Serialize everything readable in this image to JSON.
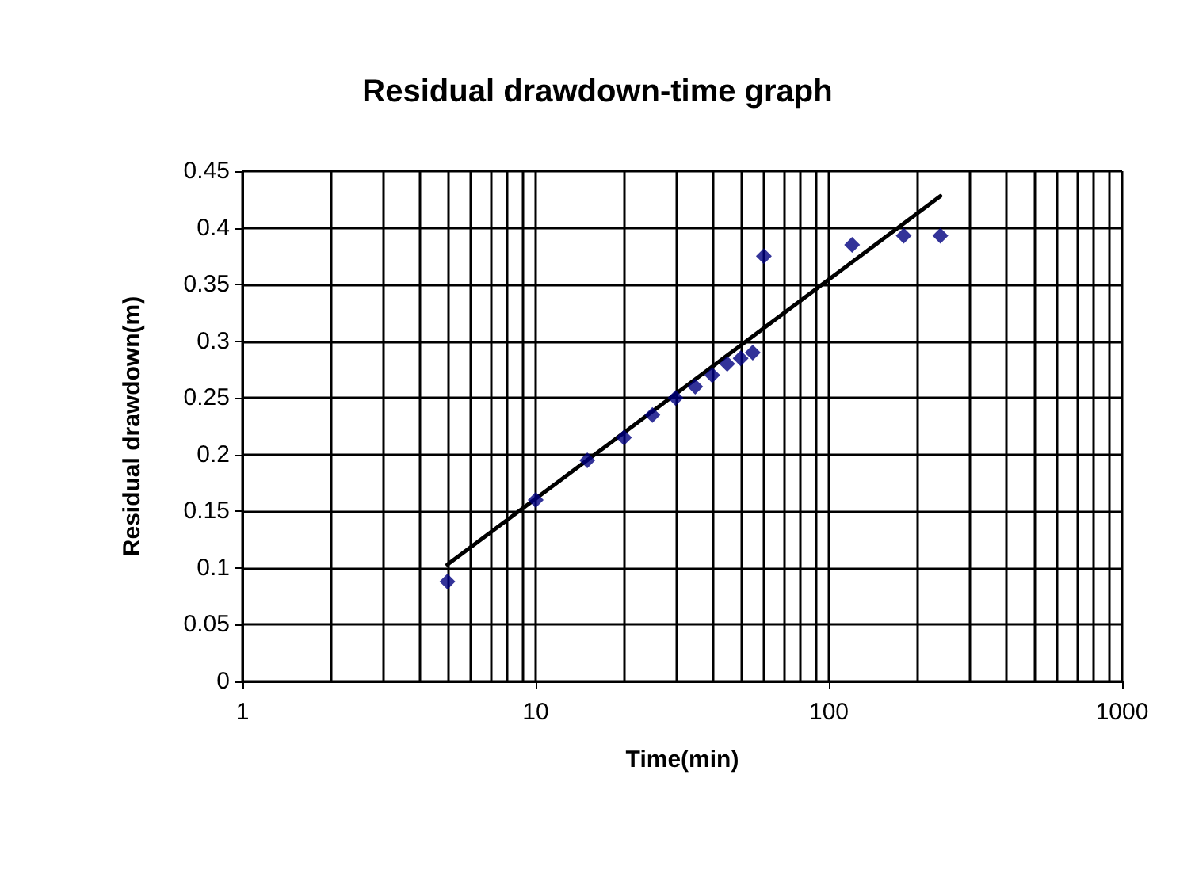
{
  "chart_data": {
    "type": "scatter",
    "title": "Residual drawdown-time graph",
    "xlabel": "Time(min)",
    "ylabel": "Residual drawdown(m)",
    "log": "x",
    "xlim": [
      1,
      1000
    ],
    "xticks": [
      1,
      10,
      100,
      1000
    ],
    "ylim": [
      0,
      0.45
    ],
    "yticks": [
      0,
      0.05,
      0.1,
      0.15,
      0.2,
      0.25,
      0.3,
      0.35,
      0.4,
      0.45
    ],
    "grid": true,
    "series": [
      {
        "color": "#000080",
        "marker": "diamond",
        "x": [
          5,
          10,
          15,
          20,
          25,
          30,
          35,
          40,
          45,
          50,
          55,
          60,
          120,
          180,
          240
        ],
        "values": [
          0.088,
          0.16,
          0.195,
          0.215,
          0.235,
          0.25,
          0.26,
          0.27,
          0.28,
          0.285,
          0.29,
          0.375,
          0.385,
          0.393,
          0.393
        ]
      },
      {
        "type": "line",
        "color": "#000000",
        "marker": "none",
        "line_style": "solid",
        "x": [
          5,
          240
        ],
        "values": [
          0.103,
          0.428
        ]
      }
    ]
  }
}
